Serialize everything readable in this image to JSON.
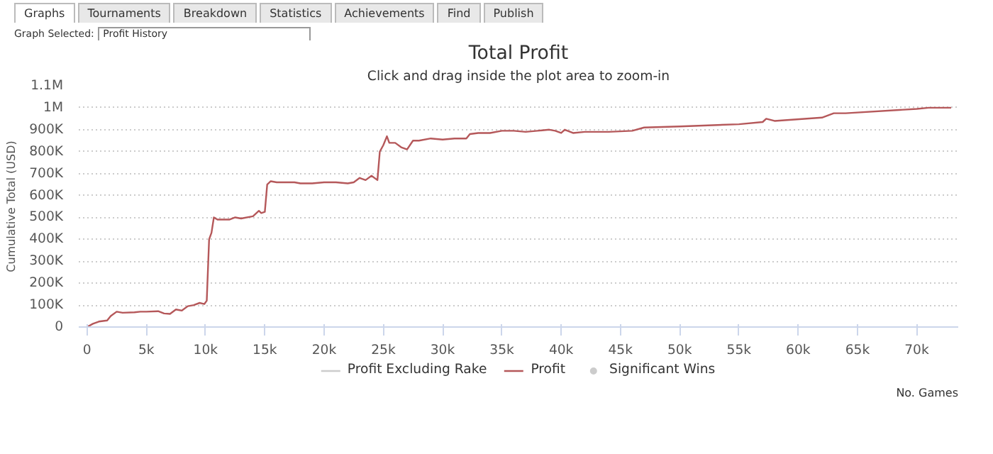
{
  "chart_data": {
    "type": "line",
    "title": "Total Profit",
    "subtitle": "Click and drag inside the plot area to zoom-in",
    "xlabel": "No. Games",
    "ylabel": "Cumulative Total (USD)",
    "annotations": [
      "Graphs",
      "Tournaments",
      "Breakdown",
      "Statistics",
      "Achievements",
      "Find",
      "Publish",
      "Graph Selected:",
      "Profit History"
    ],
    "x": [
      0,
      500,
      1000,
      1700,
      2000,
      2500,
      3000,
      4000,
      4500,
      5000,
      6000,
      6500,
      7000,
      7500,
      8000,
      8500,
      9000,
      9500,
      9900,
      10100,
      10300,
      10500,
      10700,
      11000,
      12000,
      12500,
      13000,
      14000,
      14500,
      14700,
      15000,
      15200,
      15500,
      16000,
      17500,
      18000,
      19000,
      20000,
      21000,
      22000,
      22500,
      23000,
      23500,
      24000,
      24500,
      24700,
      25000,
      25300,
      25500,
      26000,
      26500,
      27000,
      27500,
      28000,
      29000,
      30000,
      31000,
      32000,
      32300,
      33000,
      34000,
      35000,
      36000,
      37000,
      38000,
      39000,
      39500,
      40000,
      40300,
      41000,
      42000,
      44000,
      46000,
      47000,
      50000,
      55000,
      57000,
      57300,
      58000,
      62000,
      63000,
      64000,
      70000,
      71000,
      72900
    ],
    "series": [
      {
        "name": "Profit Excluding Rake",
        "color": "#cccccc",
        "values": [
          null,
          null,
          null,
          null,
          null,
          null,
          null,
          null,
          null,
          null,
          null,
          null,
          null,
          null,
          null,
          null,
          null,
          null,
          null,
          null,
          null,
          null,
          null,
          null,
          null,
          null,
          null,
          null,
          null,
          null,
          null,
          null,
          null,
          null,
          null,
          null,
          null,
          null,
          null,
          null,
          null,
          null,
          null,
          null,
          null,
          null,
          null,
          null,
          null,
          null,
          null,
          null,
          null,
          null,
          null,
          null,
          null,
          null,
          null,
          null,
          null,
          null,
          null,
          null,
          null,
          null,
          null,
          null,
          null,
          null,
          null,
          null,
          null,
          null,
          null,
          null,
          null,
          null,
          null,
          null,
          null,
          null,
          null,
          null,
          null
        ]
      },
      {
        "name": "Profit",
        "color": "#b5585a",
        "values": [
          0,
          15000,
          25000,
          30000,
          50000,
          70000,
          65000,
          67000,
          70000,
          70000,
          72000,
          62000,
          60000,
          80000,
          75000,
          95000,
          100000,
          110000,
          105000,
          120000,
          400000,
          430000,
          500000,
          490000,
          490000,
          500000,
          495000,
          505000,
          530000,
          520000,
          525000,
          650000,
          665000,
          660000,
          660000,
          655000,
          655000,
          660000,
          660000,
          655000,
          660000,
          680000,
          670000,
          690000,
          670000,
          800000,
          830000,
          870000,
          840000,
          840000,
          820000,
          810000,
          850000,
          850000,
          860000,
          855000,
          860000,
          860000,
          880000,
          885000,
          885000,
          895000,
          895000,
          890000,
          895000,
          900000,
          895000,
          885000,
          900000,
          885000,
          890000,
          890000,
          895000,
          910000,
          915000,
          925000,
          935000,
          950000,
          940000,
          955000,
          975000,
          975000,
          995000,
          1000000,
          1000000
        ]
      },
      {
        "name": "Significant Wins",
        "color": "#cccccc",
        "type": "scatter",
        "marker": "circle",
        "values": [
          null,
          null,
          null,
          null,
          null,
          null,
          null,
          null,
          null,
          null,
          null,
          null,
          null,
          null,
          null,
          null,
          null,
          null,
          null,
          null,
          null,
          null,
          null,
          null,
          null,
          null,
          null,
          null,
          null,
          null,
          null,
          null,
          null,
          null,
          null,
          null,
          null,
          null,
          null,
          null,
          null,
          null,
          null,
          null,
          null,
          null,
          null,
          null,
          null,
          null,
          null,
          null,
          null,
          null,
          null,
          null,
          null,
          null,
          null,
          null,
          null,
          null,
          null,
          null,
          null,
          null,
          null,
          null,
          null,
          null,
          null,
          null,
          null,
          null,
          null,
          null,
          null,
          null,
          null,
          null,
          null,
          null,
          null,
          null,
          null
        ]
      }
    ],
    "xlim": [
      -700,
      73500
    ],
    "ylim": [
      0,
      1100000
    ],
    "xticks": [
      {
        "value": 0,
        "label": "0"
      },
      {
        "value": 5000,
        "label": "5k"
      },
      {
        "value": 10000,
        "label": "10k"
      },
      {
        "value": 15000,
        "label": "15k"
      },
      {
        "value": 20000,
        "label": "20k"
      },
      {
        "value": 25000,
        "label": "25k"
      },
      {
        "value": 30000,
        "label": "30k"
      },
      {
        "value": 35000,
        "label": "35k"
      },
      {
        "value": 40000,
        "label": "40k"
      },
      {
        "value": 45000,
        "label": "45k"
      },
      {
        "value": 50000,
        "label": "50k"
      },
      {
        "value": 55000,
        "label": "55k"
      },
      {
        "value": 60000,
        "label": "60k"
      },
      {
        "value": 65000,
        "label": "65k"
      },
      {
        "value": 70000,
        "label": "70k"
      }
    ],
    "yticks": [
      0,
      {
        "value": 100000,
        "label": "100K"
      },
      {
        "value": 200000,
        "label": "200K"
      },
      {
        "value": 300000,
        "label": "300K"
      },
      {
        "value": 400000,
        "label": "400K"
      },
      {
        "value": 500000,
        "label": "500K"
      },
      {
        "value": 600000,
        "label": "600K"
      },
      {
        "value": 700000,
        "label": "700K"
      },
      {
        "value": 800000,
        "label": "800K"
      },
      {
        "value": 900000,
        "label": "900K"
      },
      {
        "value": 1000000,
        "label": "1M"
      },
      {
        "value": 1100000,
        "label": "1.1M"
      }
    ],
    "grid": "y",
    "legend": "bottom",
    "line_style": "solid"
  }
}
